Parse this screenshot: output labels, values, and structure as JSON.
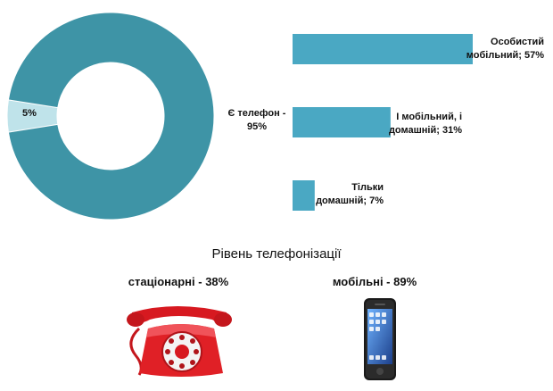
{
  "chart_data": [
    {
      "type": "pie",
      "slices": [
        {
          "label": "Є телефон - 95%",
          "value": 95,
          "color": "#3e94a6"
        },
        {
          "label": "5%",
          "value": 5,
          "color": "#bfe3ea"
        }
      ]
    },
    {
      "type": "bar",
      "orientation": "horizontal",
      "categories": [
        "Особистий мобільний; 57%",
        "І мобільний, і домашній; 31%",
        "Тільки домашній; 7%"
      ],
      "values": [
        57,
        31,
        7
      ],
      "color": "#4aa8c3"
    }
  ],
  "labels": {
    "has_phone_line1": "Є телефон -",
    "has_phone_line2": "95%",
    "no_phone": "5%",
    "bar1_line1": "Особистий",
    "bar1_line2": "мобільний; 57%",
    "bar2_line1": "І мобільний, і",
    "bar2_line2": "домашній; 31%",
    "bar3_line1": "Тільки",
    "bar3_line2": "домашній; 7%"
  },
  "section": {
    "title": "Рівень телефонізації",
    "landline": "стаціонарні - 38%",
    "mobile": "мобільні - 89%"
  },
  "icons": {
    "landline": "red-rotary-telephone",
    "mobile": "smartphone"
  }
}
